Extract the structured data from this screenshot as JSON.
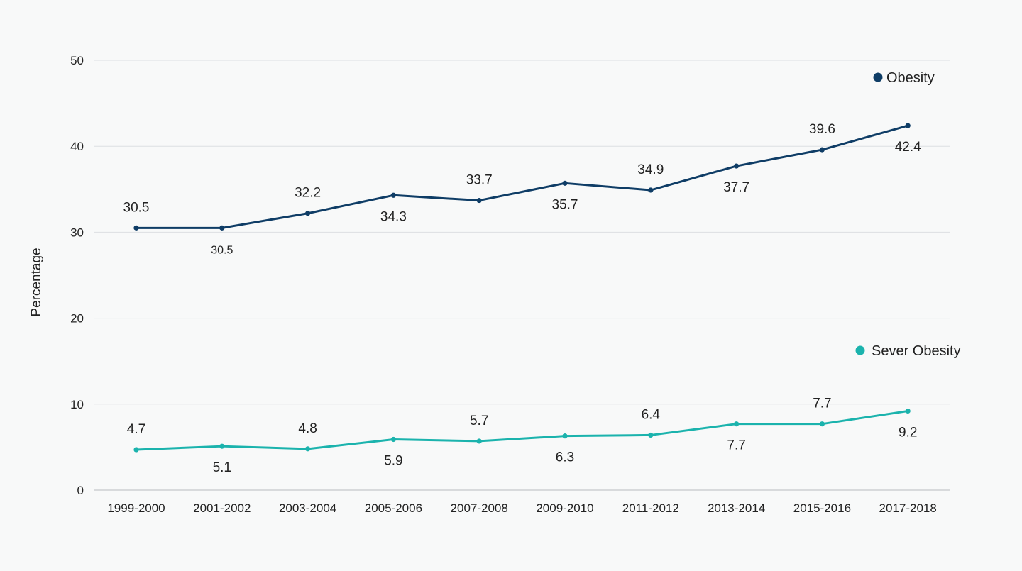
{
  "chart_data": {
    "type": "line",
    "title": "",
    "xlabel": "",
    "ylabel": "Percentage",
    "ylim": [
      0,
      50
    ],
    "yticks": [
      0,
      10,
      20,
      30,
      40,
      50
    ],
    "grid": true,
    "legend": "right, beside each series",
    "categories": [
      "1999-2000",
      "2001-2002",
      "2003-2004",
      "2005-2006",
      "2007-2008",
      "2009-2010",
      "2011-2012",
      "2013-2014",
      "2015-2016",
      "2017-2018"
    ],
    "series": [
      {
        "name": "Obesity",
        "color": "#0f3d66",
        "values": [
          30.5,
          30.5,
          32.2,
          34.3,
          33.7,
          35.7,
          34.9,
          37.7,
          39.6,
          42.4
        ],
        "value_labels": [
          "30.5",
          "30.5",
          "32.2",
          "34.3",
          "33.7",
          "35.7",
          "34.9",
          "37.7",
          "39.6",
          "42.4"
        ],
        "label_positions": [
          "above",
          "below",
          "above",
          "below",
          "above",
          "below",
          "above",
          "below",
          "above",
          "below"
        ]
      },
      {
        "name": "Sever Obesity",
        "color": "#1bb3ad",
        "values": [
          4.7,
          5.1,
          4.8,
          5.9,
          5.7,
          6.3,
          6.4,
          7.7,
          7.7,
          9.2
        ],
        "value_labels": [
          "4.7",
          "5.1",
          "4.8",
          "5.9",
          "5.7",
          "6.3",
          "6.4",
          "7.7",
          "7.7",
          "9.2"
        ],
        "label_positions": [
          "above",
          "below",
          "above",
          "below",
          "above",
          "below",
          "above",
          "below",
          "above",
          "below"
        ]
      }
    ]
  }
}
